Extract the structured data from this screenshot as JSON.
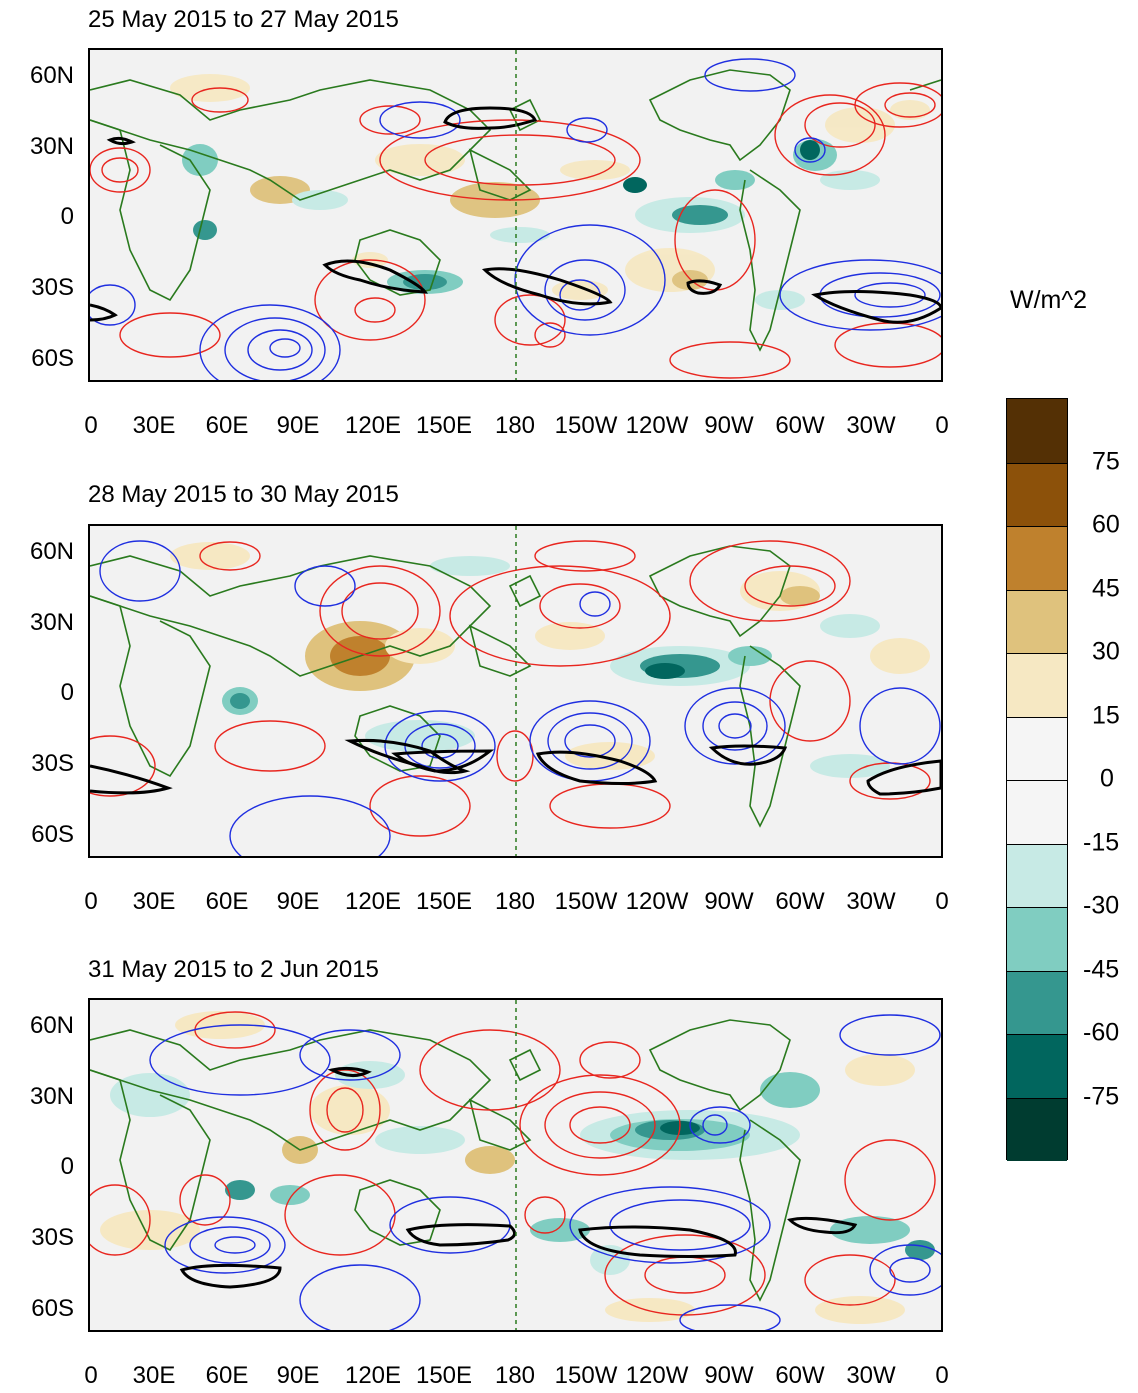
{
  "colorbar": {
    "units": "W/m^2",
    "labels": [
      "75",
      "60",
      "45",
      "30",
      "15",
      "0",
      "-15",
      "-30",
      "-45",
      "-60",
      "-75"
    ],
    "colors": [
      "#543005",
      "#8c510a",
      "#bf812d",
      "#dfc27d",
      "#f6e8c3",
      "#f5f5f5",
      "#f5f5f5",
      "#c7eae5",
      "#80cdc1",
      "#35978f",
      "#01665e",
      "#003c30"
    ]
  },
  "axes": {
    "lat_labels": [
      "60N",
      "30N",
      "0",
      "30S",
      "60S"
    ],
    "lon_labels": [
      "0",
      "30E",
      "60E",
      "90E",
      "120E",
      "150E",
      "180",
      "150W",
      "120W",
      "90W",
      "60W",
      "30W",
      "0"
    ]
  },
  "panels": [
    {
      "title": "25 May 2015 to 27 May 2015"
    },
    {
      "title": "28 May 2015 to 30 May 2015"
    },
    {
      "title": "31 May 2015 to 2 Jun 2015"
    }
  ],
  "styles": {
    "positive_contour": "#e8261f",
    "negative_contour": "#1f2fe0",
    "bold_contour": "#000000",
    "coastline": "#2a7a1e",
    "dateline": "#2a7a1e"
  }
}
